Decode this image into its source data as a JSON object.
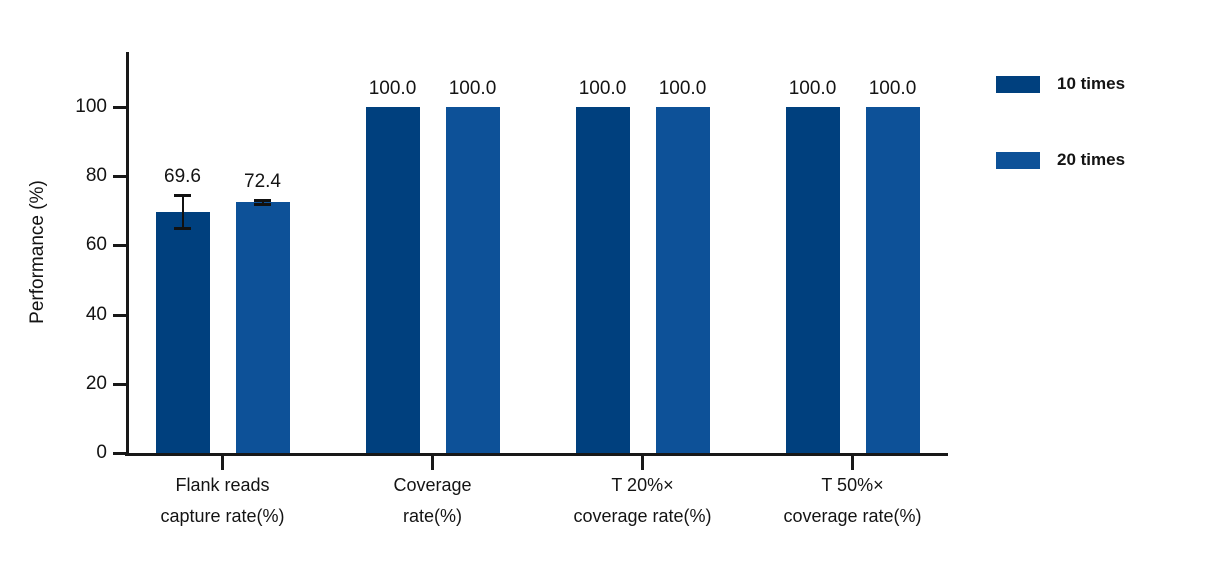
{
  "figure": {
    "background": "#ffffff",
    "text_color": "#141414",
    "axis_color": "#181818"
  },
  "legend": {
    "position": "top-right",
    "entries": [
      {
        "label": "10 times",
        "color": "#00407E"
      },
      {
        "label": "20 times",
        "color": "#0D5198"
      }
    ]
  },
  "chart_data": {
    "type": "bar",
    "title": "",
    "xlabel": "",
    "ylabel": "Performance (%)",
    "ylim": [
      0,
      116
    ],
    "yticks": [
      0,
      20,
      40,
      60,
      80,
      100
    ],
    "grid": false,
    "legend_position": "top-right",
    "value_labels": true,
    "value_label_decimals": 1,
    "categories": [
      [
        "Flank reads",
        "capture rate(%)"
      ],
      [
        "Coverage",
        "rate(%)"
      ],
      [
        "T 20%×",
        "coverage rate(%)"
      ],
      [
        "T 50%×",
        "coverage rate(%)"
      ]
    ],
    "series": [
      {
        "name": "10 times",
        "color": "#00407E",
        "values": [
          69.6,
          100.0,
          100.0,
          100.0
        ],
        "errors": [
          4.9,
          0,
          0,
          0
        ]
      },
      {
        "name": "20 times",
        "color": "#0D5198",
        "values": [
          72.4,
          100.0,
          100.0,
          100.0
        ],
        "errors": [
          0.7,
          0,
          0,
          0
        ]
      }
    ]
  }
}
